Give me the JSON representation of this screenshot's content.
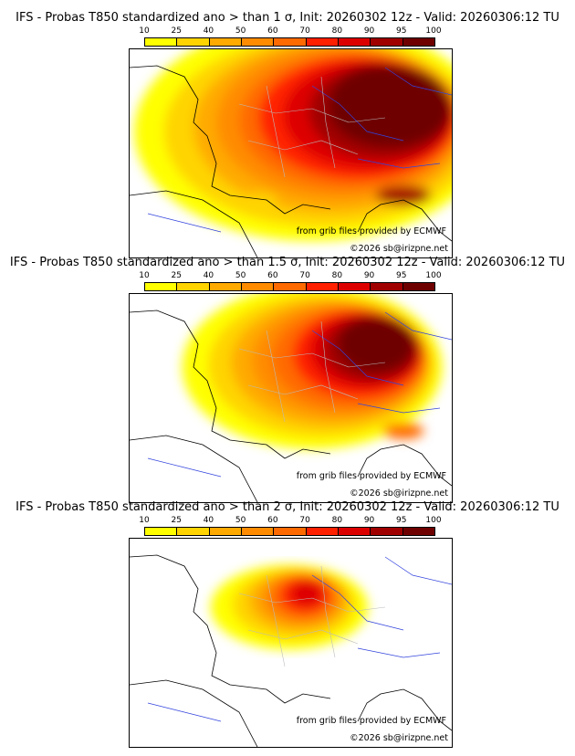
{
  "colorbar": {
    "labels": [
      "10",
      "25",
      "40",
      "50",
      "60",
      "70",
      "80",
      "90",
      "95",
      "100"
    ],
    "colors": [
      "#ffff00",
      "#ffd400",
      "#ffaa00",
      "#ff8c00",
      "#ff6a00",
      "#ff2000",
      "#dd0000",
      "#a00000",
      "#6e0000"
    ]
  },
  "panels": [
    {
      "title": "IFS - Probas T850  standardized ano > than 1 σ, Init: 20260302 12z - Valid: 20260306:12 TU",
      "threshold_sigma": 1
    },
    {
      "title": "IFS - Probas T850  standardized ano > than 1.5 σ, Init: 20260302 12z - Valid: 20260306:12 TU",
      "threshold_sigma": 1.5
    },
    {
      "title": "IFS - Probas T850  standardized ano > than 2 σ, Init: 20260302 12z - Valid: 20260306:12 TU",
      "threshold_sigma": 2
    }
  ],
  "source_text": "from grib files provided by ECMWF",
  "copyright": "©2026 sb@irizpne.net"
}
